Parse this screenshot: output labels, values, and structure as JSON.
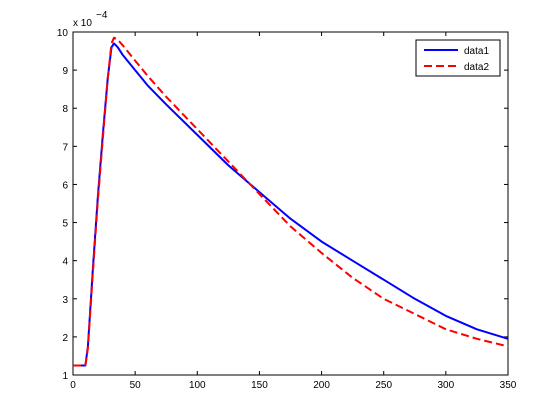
{
  "chart_data": {
    "type": "line",
    "title": "",
    "xlabel": "",
    "ylabel": "",
    "y_multiplier": {
      "base": "x 10",
      "exponent": "−4"
    },
    "xlim": [
      0,
      350
    ],
    "ylim": [
      1,
      10
    ],
    "xticks": [
      0,
      50,
      100,
      150,
      200,
      250,
      300,
      350
    ],
    "yticks": [
      1,
      2,
      3,
      4,
      5,
      6,
      7,
      8,
      9,
      10
    ],
    "xtick_labels": [
      "0",
      "50",
      "100",
      "150",
      "200",
      "250",
      "300",
      "350"
    ],
    "ytick_labels": [
      "1",
      "2",
      "3",
      "4",
      "5",
      "6",
      "7",
      "8",
      "9",
      "10"
    ],
    "grid": false,
    "legend_position": "top-right",
    "series": [
      {
        "name": "data1",
        "color": "#0000ff",
        "dash": "solid",
        "x": [
          0,
          8,
          10,
          12,
          16,
          20,
          24,
          28,
          31,
          33,
          36,
          40,
          50,
          60,
          75,
          100,
          125,
          150,
          175,
          200,
          225,
          250,
          275,
          300,
          325,
          350
        ],
        "y": [
          1.25,
          1.25,
          1.25,
          1.75,
          3.8,
          5.7,
          7.3,
          8.8,
          9.6,
          9.7,
          9.6,
          9.4,
          9.0,
          8.6,
          8.1,
          7.3,
          6.5,
          5.8,
          5.1,
          4.5,
          4.0,
          3.5,
          3.0,
          2.55,
          2.2,
          1.95
        ]
      },
      {
        "name": "data2",
        "color": "#ff0000",
        "dash": "dashed",
        "x": [
          0,
          8,
          10,
          12,
          16,
          20,
          24,
          28,
          31,
          33,
          36,
          40,
          50,
          60,
          75,
          100,
          125,
          150,
          175,
          200,
          225,
          250,
          275,
          300,
          325,
          350
        ],
        "y": [
          1.25,
          1.25,
          1.25,
          1.7,
          3.7,
          5.6,
          7.2,
          8.8,
          9.7,
          9.85,
          9.8,
          9.65,
          9.25,
          8.85,
          8.3,
          7.45,
          6.6,
          5.75,
          4.9,
          4.2,
          3.55,
          3.0,
          2.6,
          2.2,
          1.95,
          1.75
        ]
      }
    ]
  }
}
